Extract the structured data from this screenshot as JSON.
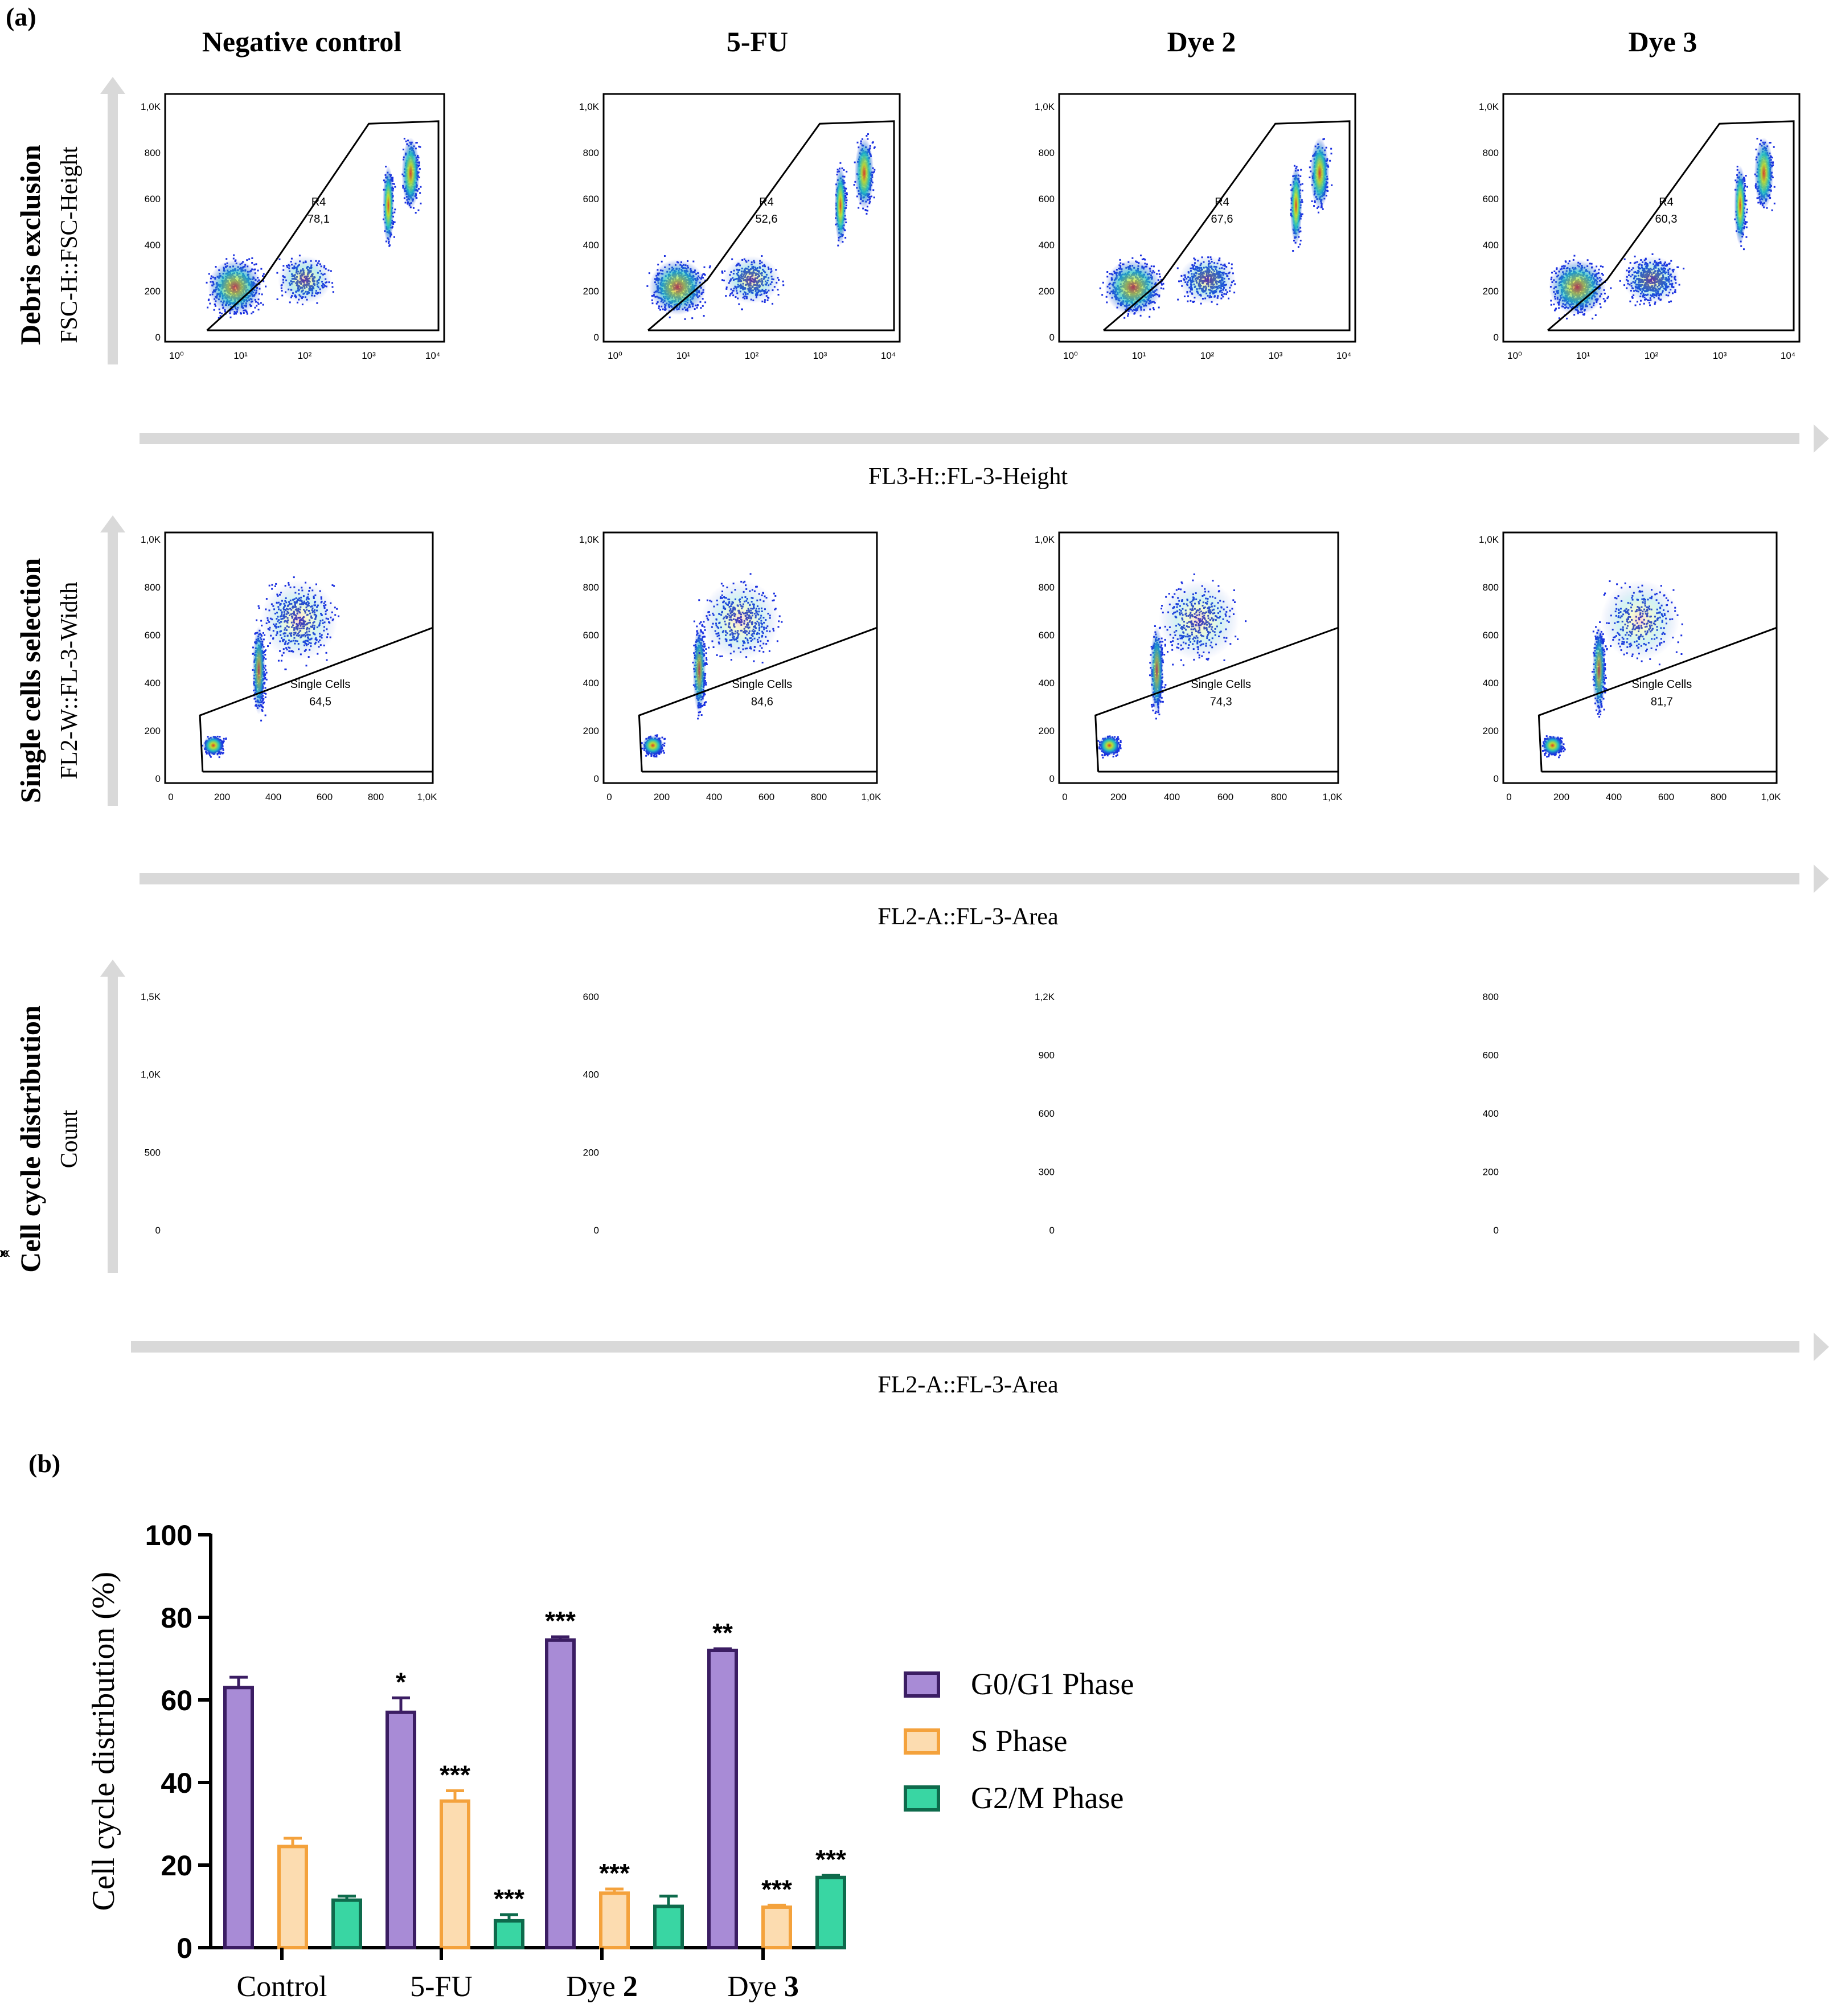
{
  "panel_a": {
    "label": "(a)",
    "columns": [
      "Negative control",
      "5-FU",
      "Dye 2",
      "Dye 3"
    ],
    "rows": [
      {
        "title": "Debris exclusion",
        "ylabel": "FSC-H::FSC-Height",
        "xlabel": "FL3-H::FL-3-Height"
      },
      {
        "title": "Single cells selection",
        "ylabel": "FL2-W::FL-3-Width",
        "xlabel": "FL2-A::FL-3-Area"
      },
      {
        "title": "Cell cycle distribution",
        "ylabel": "Count",
        "xlabel": "FL2-A::FL-3-Area"
      }
    ],
    "gate_r4": {
      "name": "R4",
      "values": [
        "78,1",
        "52,6",
        "67,6",
        "60,3"
      ]
    },
    "gate_single": {
      "name": "Single Cells",
      "values": [
        "64,5",
        "84,6",
        "74,3",
        "81,7"
      ]
    },
    "log_ticks": [
      "10⁰",
      "10¹",
      "10²",
      "10³",
      "10⁴"
    ],
    "lin_y_ticks": [
      "0",
      "200",
      "400",
      "600",
      "800",
      "1,0K"
    ],
    "lin_x_ticks": [
      "0",
      "200",
      "400",
      "600",
      "800",
      "1,0K"
    ],
    "hist_y_ticks": [
      [
        "0",
        "500",
        "1,0K",
        "1,5K"
      ],
      [
        "0",
        "200",
        "400",
        "600"
      ],
      [
        "0",
        "300",
        "600",
        "900",
        "1,2K"
      ],
      [
        "0",
        "200",
        "400",
        "600",
        "800"
      ]
    ],
    "colors": {
      "density_low": "#1a2fe0",
      "density_mid": "#22c4c0",
      "density_high": "#c6e62a",
      "density_peak": "#e83b1a",
      "hist_line": "#e21de2",
      "g1_fill": "#8ea4e4",
      "s_fill": "#e6e8a6",
      "g2_fill": "#7ee08a",
      "arrow": "#d9d9d9"
    }
  },
  "panel_b": {
    "label": "(b)"
  },
  "chart_data": {
    "type": "bar",
    "categories": [
      "Control",
      "5-FU",
      "Dye 2",
      "Dye 3"
    ],
    "category_labels": [
      {
        "plain": "Control",
        "bold": ""
      },
      {
        "plain": "5-FU",
        "bold": ""
      },
      {
        "plain": "Dye ",
        "bold": "2"
      },
      {
        "plain": "Dye ",
        "bold": "3"
      }
    ],
    "series": [
      {
        "name": "G0/G1 Phase",
        "values": [
          63,
          57,
          74.5,
          72
        ],
        "errors": [
          2.5,
          3.5,
          0.8,
          0.4
        ],
        "significance": [
          "",
          "*",
          "***",
          "**"
        ],
        "fill": "#a88bd6",
        "stroke": "#3b1d63"
      },
      {
        "name": "S Phase",
        "values": [
          24.5,
          35.5,
          13.2,
          9.8
        ],
        "errors": [
          2,
          2.5,
          1,
          0.5
        ],
        "significance": [
          "",
          "***",
          "***",
          "***"
        ],
        "fill": "#fcdcb0",
        "stroke": "#f4a23c"
      },
      {
        "name": "G2/M Phase",
        "values": [
          11.5,
          6.5,
          10,
          17
        ],
        "errors": [
          1,
          1.5,
          2.5,
          0.5
        ],
        "significance": [
          "",
          "***",
          "",
          "***"
        ],
        "fill": "#39d6a3",
        "stroke": "#0e6b4c"
      }
    ],
    "ylabel": "Cell cycle distribution (%)",
    "ylim": [
      0,
      100
    ],
    "y_ticks": [
      0,
      20,
      40,
      60,
      80,
      100
    ],
    "legend_position": "right"
  }
}
